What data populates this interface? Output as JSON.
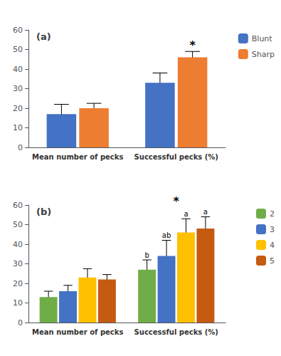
{
  "chart_data": [
    {
      "type": "bar",
      "title": "(a)",
      "categories": [
        "Mean number of pecks",
        "Successful pecks (%)"
      ],
      "series": [
        {
          "name": "Blunt",
          "color": "#4472C4",
          "values": [
            17.0,
            33.0
          ],
          "errors": [
            5.0,
            5.0
          ]
        },
        {
          "name": "Sharp",
          "color": "#ED7D31",
          "values": [
            20.0,
            46.0
          ],
          "errors": [
            2.5,
            3.0
          ]
        }
      ],
      "annotations": [
        {
          "text": "*",
          "category": "Successful pecks (%)",
          "series": "Sharp"
        }
      ],
      "ylim": [
        0,
        60
      ],
      "yticks": [
        0,
        10,
        20,
        30,
        40,
        50,
        60
      ],
      "grid": false,
      "legend": "right"
    },
    {
      "type": "bar",
      "title": "(b)",
      "categories": [
        "Mean number of pecks",
        "Successful pecks (%)"
      ],
      "series": [
        {
          "name": "2",
          "color": "#70AD47",
          "values": [
            13.0,
            27.0
          ],
          "errors": [
            3.0,
            5.0
          ],
          "annotations": [
            null,
            "b"
          ]
        },
        {
          "name": "3",
          "color": "#4472C4",
          "values": [
            16.0,
            34.0
          ],
          "errors": [
            3.0,
            8.0
          ],
          "annotations": [
            null,
            "ab"
          ]
        },
        {
          "name": "4",
          "color": "#FFC000",
          "values": [
            23.0,
            46.0
          ],
          "errors": [
            4.5,
            7.0
          ],
          "annotations": [
            null,
            "a"
          ]
        },
        {
          "name": "5",
          "color": "#C55A11",
          "values": [
            22.0,
            48.0
          ],
          "errors": [
            2.5,
            6.0
          ],
          "annotations": [
            null,
            "a"
          ]
        }
      ],
      "annotations": [
        {
          "text": "*",
          "category": "Successful pecks (%)"
        }
      ],
      "ylim": [
        0,
        60
      ],
      "yticks": [
        0,
        10,
        20,
        30,
        40,
        50,
        60
      ],
      "grid": false,
      "legend": "right"
    }
  ]
}
